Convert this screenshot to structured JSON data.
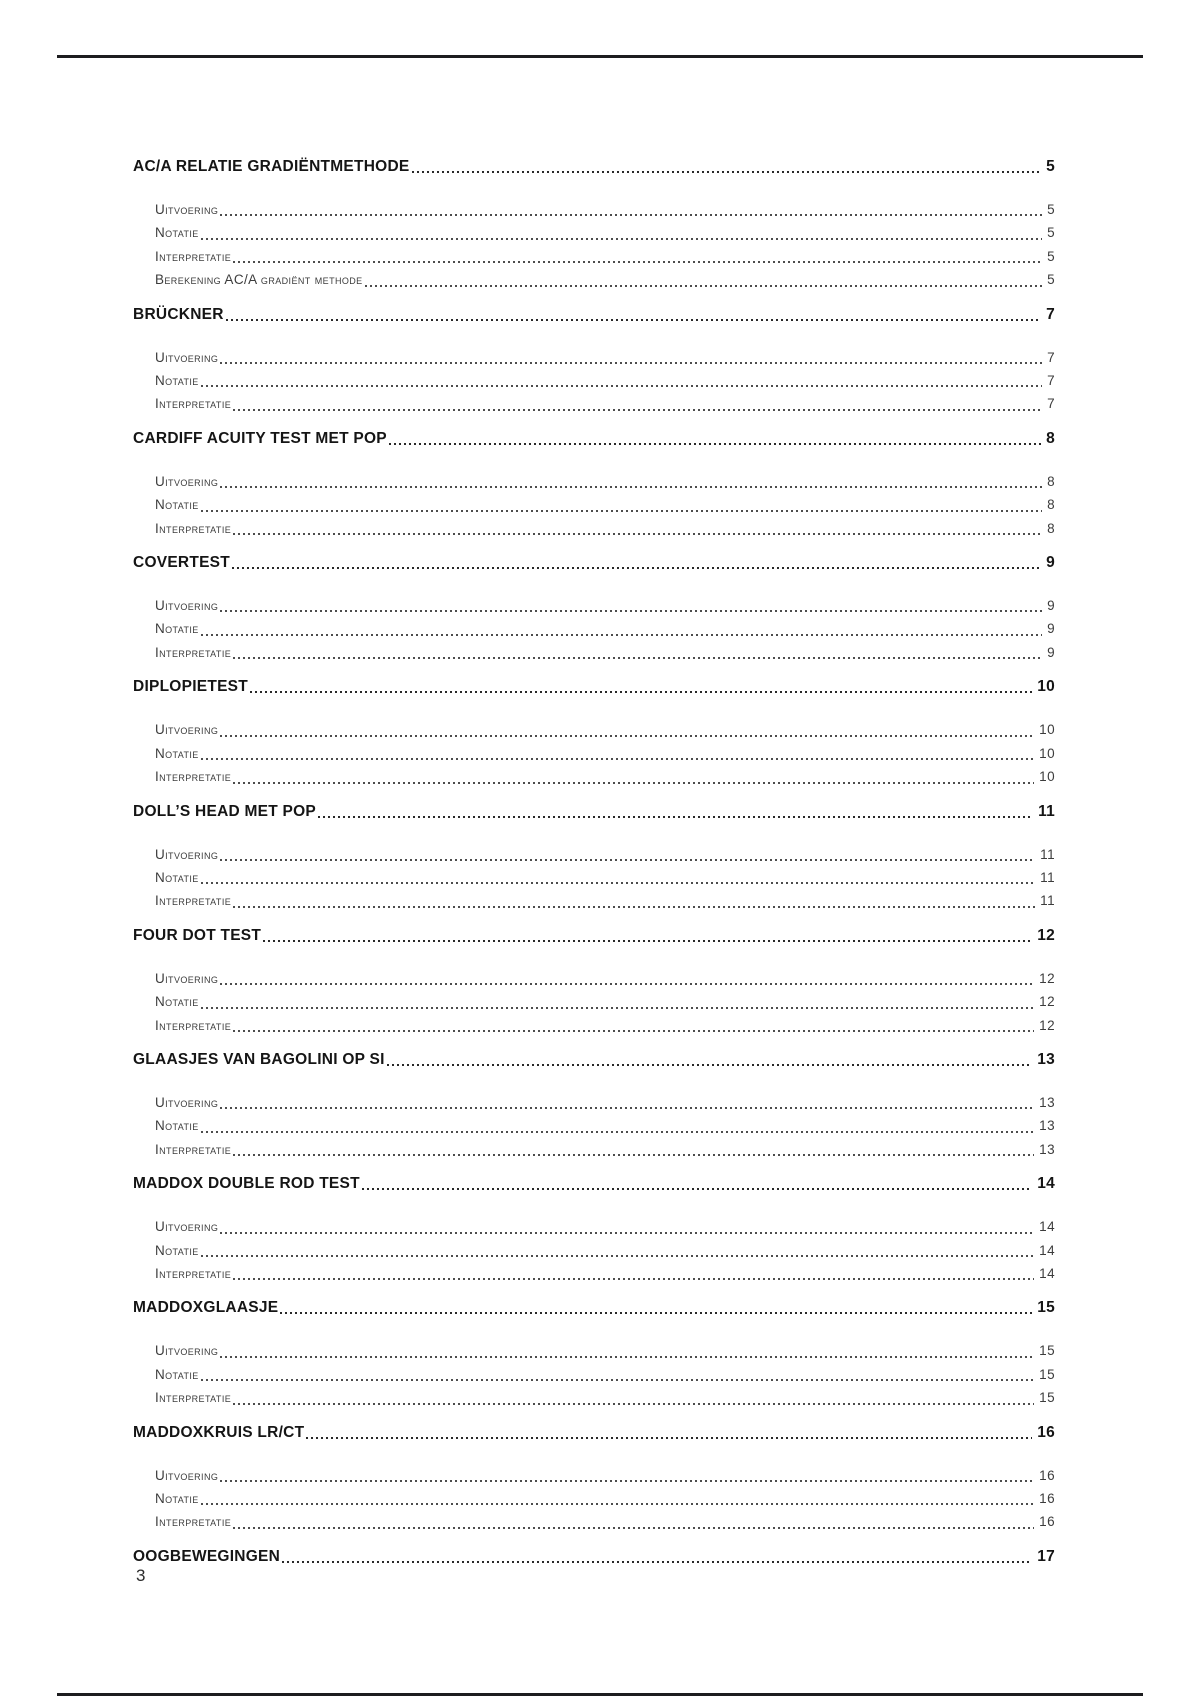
{
  "document": {
    "page_number": "3"
  },
  "toc": {
    "sections": [
      {
        "title": "AC/A RELATIE GRADIËNTMETHODE",
        "page": "5",
        "subs": [
          {
            "label": "Uitvoering",
            "page": "5"
          },
          {
            "label": "Notatie",
            "page": "5"
          },
          {
            "label": "Interpretatie",
            "page": "5"
          },
          {
            "label": "Berekening AC/A gradiënt methode",
            "page": "5"
          }
        ]
      },
      {
        "title": "BRÜCKNER",
        "page": "7",
        "subs": [
          {
            "label": "Uitvoering",
            "page": "7"
          },
          {
            "label": "Notatie",
            "page": "7"
          },
          {
            "label": "Interpretatie",
            "page": "7"
          }
        ]
      },
      {
        "title": "CARDIFF ACUITY TEST MET POP",
        "page": "8",
        "subs": [
          {
            "label": "Uitvoering",
            "page": "8"
          },
          {
            "label": "Notatie",
            "page": "8"
          },
          {
            "label": "Interpretatie",
            "page": "8"
          }
        ]
      },
      {
        "title": "COVERTEST",
        "page": "9",
        "subs": [
          {
            "label": "Uitvoering",
            "page": "9"
          },
          {
            "label": "Notatie",
            "page": "9"
          },
          {
            "label": "Interpretatie",
            "page": "9"
          }
        ]
      },
      {
        "title": "DIPLOPIETEST",
        "page": "10",
        "subs": [
          {
            "label": "Uitvoering",
            "page": "10"
          },
          {
            "label": "Notatie",
            "page": "10"
          },
          {
            "label": "Interpretatie",
            "page": "10"
          }
        ]
      },
      {
        "title": "DOLL’S HEAD MET POP",
        "page": "11",
        "subs": [
          {
            "label": "Uitvoering",
            "page": "11"
          },
          {
            "label": "Notatie",
            "page": "11"
          },
          {
            "label": "Interpretatie",
            "page": "11"
          }
        ]
      },
      {
        "title": "FOUR DOT TEST",
        "page": "12",
        "subs": [
          {
            "label": "Uitvoering",
            "page": "12"
          },
          {
            "label": "Notatie",
            "page": "12"
          },
          {
            "label": "Interpretatie",
            "page": "12"
          }
        ]
      },
      {
        "title": "GLAASJES VAN BAGOLINI OP SI",
        "page": "13",
        "subs": [
          {
            "label": "Uitvoering",
            "page": "13"
          },
          {
            "label": "Notatie",
            "page": "13"
          },
          {
            "label": "Interpretatie",
            "page": "13"
          }
        ]
      },
      {
        "title": "MADDOX DOUBLE ROD TEST",
        "page": "14",
        "subs": [
          {
            "label": "Uitvoering",
            "page": "14"
          },
          {
            "label": "Notatie",
            "page": "14"
          },
          {
            "label": "Interpretatie",
            "page": "14"
          }
        ]
      },
      {
        "title": "MADDOXGLAASJE",
        "page": "15",
        "subs": [
          {
            "label": "Uitvoering",
            "page": "15"
          },
          {
            "label": "Notatie",
            "page": "15"
          },
          {
            "label": "Interpretatie",
            "page": "15"
          }
        ]
      },
      {
        "title": "MADDOXKRUIS LR/CT",
        "page": "16",
        "subs": [
          {
            "label": "Uitvoering",
            "page": "16"
          },
          {
            "label": "Notatie",
            "page": "16"
          },
          {
            "label": "Interpretatie",
            "page": "16"
          }
        ]
      },
      {
        "title": "OOGBEWEGINGEN",
        "page": "17",
        "subs": []
      }
    ]
  }
}
